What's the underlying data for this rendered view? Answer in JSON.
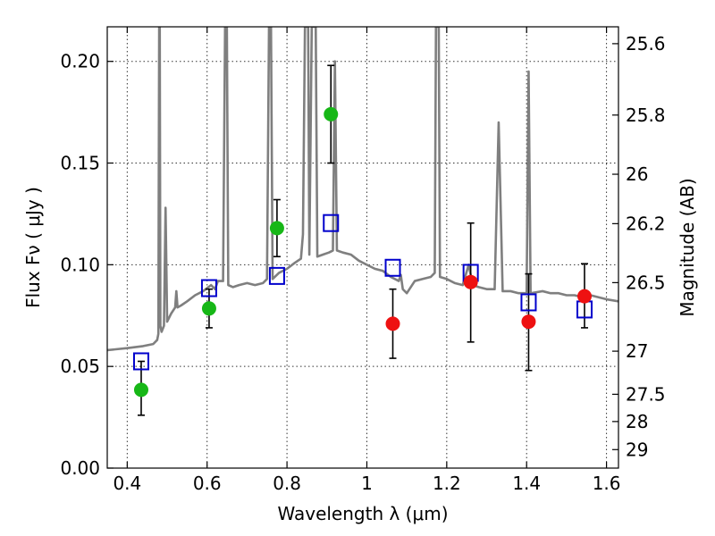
{
  "chart_data": {
    "type": "scatter",
    "xlabel": "Wavelength  λ (μm)",
    "ylabel": "Flux  Fν  ( μJy )",
    "y2label": "Magnitude (AB)",
    "xlim": [
      0.35,
      1.63
    ],
    "ylim": [
      0.0,
      0.217
    ],
    "x_ticks": [
      0.4,
      0.6,
      0.8,
      1.0,
      1.2,
      1.4,
      1.6
    ],
    "x_tick_labels": [
      "0.4",
      "0.6",
      "0.8",
      "1",
      "1.2",
      "1.4",
      "1.6"
    ],
    "y_ticks": [
      0.0,
      0.05,
      0.1,
      0.15,
      0.2
    ],
    "y_tick_labels": [
      "0.00",
      "0.05",
      "0.10",
      "0.15",
      "0.20"
    ],
    "y2_ticks": [
      {
        "label": "25.6",
        "flux": 0.2087
      },
      {
        "label": "25.8",
        "flux": 0.1736
      },
      {
        "label": "26",
        "flux": 0.1445
      },
      {
        "label": "26.2",
        "flux": 0.1202
      },
      {
        "label": "26.5",
        "flux": 0.0912
      },
      {
        "label": "27",
        "flux": 0.0575
      },
      {
        "label": "27.5",
        "flux": 0.0363
      },
      {
        "label": "28",
        "flux": 0.0229
      },
      {
        "label": "29",
        "flux": 0.0091
      }
    ],
    "grid": true,
    "colors": {
      "spectrum": "#7f7f7f",
      "green_points": "#17b717",
      "red_points": "#ee1111",
      "model_boxes": "#0000cc",
      "errorbars": "#000000"
    },
    "series": [
      {
        "kind": "line",
        "points": [
          [
            0.35,
            0.058
          ],
          [
            0.4,
            0.059
          ],
          [
            0.44,
            0.06
          ],
          [
            0.465,
            0.061
          ],
          [
            0.475,
            0.063
          ],
          [
            0.478,
            0.066
          ],
          [
            0.48,
            0.217
          ],
          [
            0.4815,
            0.217
          ],
          [
            0.483,
            0.07
          ],
          [
            0.486,
            0.067
          ],
          [
            0.492,
            0.07
          ],
          [
            0.496,
            0.128
          ],
          [
            0.5,
            0.072
          ],
          [
            0.51,
            0.076
          ],
          [
            0.52,
            0.079
          ],
          [
            0.523,
            0.087
          ],
          [
            0.526,
            0.079
          ],
          [
            0.535,
            0.08
          ],
          [
            0.55,
            0.082
          ],
          [
            0.57,
            0.085
          ],
          [
            0.59,
            0.087
          ],
          [
            0.61,
            0.09
          ],
          [
            0.62,
            0.088
          ],
          [
            0.627,
            0.092
          ],
          [
            0.64,
            0.092
          ],
          [
            0.645,
            0.217
          ],
          [
            0.6495,
            0.217
          ],
          [
            0.653,
            0.09
          ],
          [
            0.665,
            0.089
          ],
          [
            0.68,
            0.09
          ],
          [
            0.7,
            0.091
          ],
          [
            0.72,
            0.09
          ],
          [
            0.74,
            0.091
          ],
          [
            0.75,
            0.093
          ],
          [
            0.755,
            0.217
          ],
          [
            0.76,
            0.217
          ],
          [
            0.764,
            0.093
          ],
          [
            0.78,
            0.096
          ],
          [
            0.8,
            0.098
          ],
          [
            0.82,
            0.101
          ],
          [
            0.835,
            0.103
          ],
          [
            0.84,
            0.115
          ],
          [
            0.845,
            0.217
          ],
          [
            0.853,
            0.217
          ],
          [
            0.856,
            0.105
          ],
          [
            0.862,
            0.217
          ],
          [
            0.872,
            0.217
          ],
          [
            0.876,
            0.104
          ],
          [
            0.89,
            0.105
          ],
          [
            0.905,
            0.106
          ],
          [
            0.915,
            0.107
          ],
          [
            0.92,
            0.2
          ],
          [
            0.925,
            0.107
          ],
          [
            0.94,
            0.106
          ],
          [
            0.96,
            0.105
          ],
          [
            0.98,
            0.102
          ],
          [
            1.0,
            0.1
          ],
          [
            1.02,
            0.098
          ],
          [
            1.04,
            0.097
          ],
          [
            1.06,
            0.094
          ],
          [
            1.08,
            0.092
          ],
          [
            1.085,
            0.095
          ],
          [
            1.09,
            0.088
          ],
          [
            1.1,
            0.086
          ],
          [
            1.12,
            0.092
          ],
          [
            1.14,
            0.093
          ],
          [
            1.16,
            0.094
          ],
          [
            1.17,
            0.096
          ],
          [
            1.173,
            0.217
          ],
          [
            1.18,
            0.217
          ],
          [
            1.183,
            0.094
          ],
          [
            1.2,
            0.093
          ],
          [
            1.22,
            0.091
          ],
          [
            1.24,
            0.09
          ],
          [
            1.255,
            0.1
          ],
          [
            1.265,
            0.09
          ],
          [
            1.28,
            0.089
          ],
          [
            1.3,
            0.088
          ],
          [
            1.32,
            0.088
          ],
          [
            1.33,
            0.17
          ],
          [
            1.34,
            0.087
          ],
          [
            1.36,
            0.087
          ],
          [
            1.38,
            0.086
          ],
          [
            1.4,
            0.086
          ],
          [
            1.405,
            0.195
          ],
          [
            1.41,
            0.086
          ],
          [
            1.44,
            0.087
          ],
          [
            1.46,
            0.086
          ],
          [
            1.48,
            0.086
          ],
          [
            1.5,
            0.085
          ],
          [
            1.52,
            0.085
          ],
          [
            1.54,
            0.084
          ],
          [
            1.56,
            0.085
          ],
          [
            1.58,
            0.084
          ],
          [
            1.6,
            0.083
          ],
          [
            1.63,
            0.082
          ]
        ]
      },
      {
        "kind": "points",
        "marker": "circle",
        "color": "green",
        "points": [
          {
            "x": 0.435,
            "y": 0.0385,
            "err_lo": 0.026,
            "err_hi": 0.0525
          },
          {
            "x": 0.605,
            "y": 0.0785,
            "err_lo": 0.069,
            "err_hi": 0.088
          },
          {
            "x": 0.775,
            "y": 0.118,
            "err_lo": 0.104,
            "err_hi": 0.132
          },
          {
            "x": 0.91,
            "y": 0.174,
            "err_lo": 0.15,
            "err_hi": 0.198
          }
        ]
      },
      {
        "kind": "points",
        "marker": "circle",
        "color": "red",
        "points": [
          {
            "x": 1.065,
            "y": 0.071,
            "err_lo": 0.054,
            "err_hi": 0.088
          },
          {
            "x": 1.26,
            "y": 0.0915,
            "err_lo": 0.062,
            "err_hi": 0.1205
          },
          {
            "x": 1.405,
            "y": 0.072,
            "err_lo": 0.048,
            "err_hi": 0.0955
          },
          {
            "x": 1.545,
            "y": 0.0845,
            "err_lo": 0.069,
            "err_hi": 0.1005
          }
        ]
      },
      {
        "kind": "points",
        "marker": "square",
        "color": "blue",
        "points": [
          {
            "x": 0.435,
            "y": 0.0525
          },
          {
            "x": 0.605,
            "y": 0.0885
          },
          {
            "x": 0.775,
            "y": 0.0945
          },
          {
            "x": 0.91,
            "y": 0.1205
          },
          {
            "x": 1.065,
            "y": 0.0985
          },
          {
            "x": 1.26,
            "y": 0.096
          },
          {
            "x": 1.405,
            "y": 0.0815
          },
          {
            "x": 1.545,
            "y": 0.078
          }
        ]
      }
    ]
  }
}
